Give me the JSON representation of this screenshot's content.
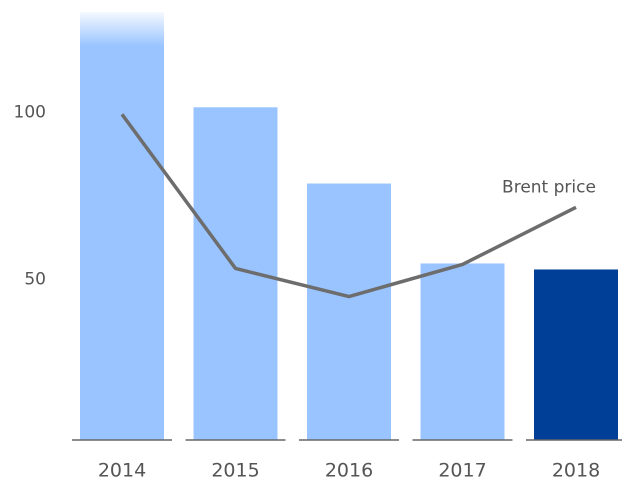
{
  "chart_data": {
    "type": "bar",
    "categories": [
      "2014",
      "2015",
      "2016",
      "2017",
      "2018"
    ],
    "values": [
      130,
      101.5,
      78.7,
      54.8,
      53
    ],
    "colors": [
      "#99c4ff",
      "#99c4ff",
      "#99c4ff",
      "#99c4ff",
      "#003f98"
    ],
    "line": {
      "name": "Brent price",
      "color": "#6d6d6d",
      "values": [
        99.4,
        53.3,
        44.9,
        54.5,
        71.6
      ]
    },
    "ylim": [
      2,
      130
    ],
    "yticks": [
      50,
      100
    ],
    "grid": false
  }
}
